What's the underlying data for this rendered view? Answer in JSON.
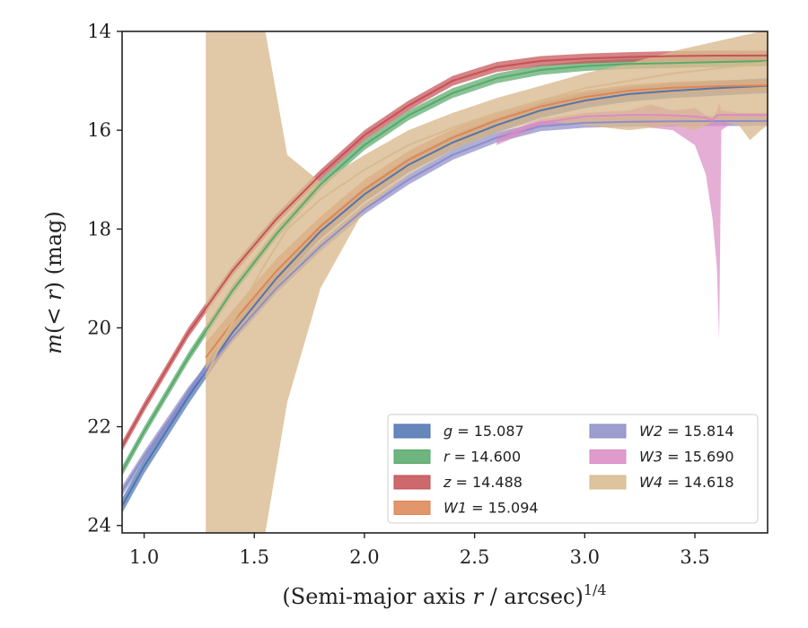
{
  "chart_data": {
    "type": "line",
    "xlabel_main": "(Semi-major axis ",
    "xlabel_var": "r",
    "xlabel_end": " / arcsec)",
    "xlabel_sup": "1/4",
    "ylabel_var1": "m",
    "ylabel_mid": "(< ",
    "ylabel_var2": "r",
    "ylabel_end": ") (mag)",
    "xlim": [
      0.9,
      3.83
    ],
    "ylim": [
      24.15,
      14.0
    ],
    "y_inverted": true,
    "xticks": [
      1.0,
      1.5,
      2.0,
      2.5,
      3.0,
      3.5
    ],
    "xtick_labels": [
      "1.0",
      "1.5",
      "2.0",
      "2.5",
      "3.0",
      "3.5"
    ],
    "yticks": [
      14,
      16,
      18,
      20,
      22,
      24
    ],
    "ytick_labels": [
      "14",
      "16",
      "18",
      "20",
      "22",
      "24"
    ],
    "grid": false,
    "legend_position": "lower-right",
    "series": [
      {
        "name": "g",
        "legend_value": "= 15.087",
        "color": "#4c72b0",
        "x": [
          0.9,
          1.0,
          1.2,
          1.4,
          1.6,
          1.8,
          2.0,
          2.2,
          2.4,
          2.6,
          2.8,
          3.0,
          3.2,
          3.4,
          3.6,
          3.83
        ],
        "y": [
          23.6,
          22.8,
          21.4,
          20.1,
          19.0,
          18.05,
          17.3,
          16.7,
          16.25,
          15.9,
          15.6,
          15.4,
          15.27,
          15.2,
          15.15,
          15.1
        ],
        "band_upper": [
          23.45,
          22.65,
          21.25,
          19.95,
          18.85,
          17.9,
          17.15,
          16.55,
          16.1,
          15.75,
          15.45,
          15.25,
          15.12,
          15.05,
          15.0,
          14.95
        ],
        "band_lower": [
          23.75,
          22.95,
          21.55,
          20.25,
          19.15,
          18.2,
          17.45,
          16.85,
          16.4,
          16.05,
          15.75,
          15.55,
          15.42,
          15.35,
          15.3,
          15.25
        ]
      },
      {
        "name": "r",
        "legend_value": "= 14.600",
        "color": "#55a868",
        "x": [
          0.9,
          1.0,
          1.2,
          1.4,
          1.6,
          1.8,
          2.0,
          2.2,
          2.4,
          2.6,
          2.8,
          3.0,
          3.2,
          3.4,
          3.6,
          3.83
        ],
        "y": [
          22.9,
          22.1,
          20.6,
          19.25,
          18.1,
          17.1,
          16.3,
          15.7,
          15.25,
          14.95,
          14.78,
          14.7,
          14.66,
          14.64,
          14.62,
          14.6
        ],
        "band_upper": [
          22.8,
          22.0,
          20.5,
          19.15,
          18.0,
          17.0,
          16.2,
          15.6,
          15.15,
          14.85,
          14.68,
          14.6,
          14.56,
          14.54,
          14.52,
          14.5
        ],
        "band_lower": [
          23.0,
          22.2,
          20.7,
          19.35,
          18.2,
          17.2,
          16.4,
          15.8,
          15.35,
          15.05,
          14.88,
          14.8,
          14.76,
          14.74,
          14.72,
          14.7
        ]
      },
      {
        "name": "z",
        "legend_value": "= 14.488",
        "color": "#c44e52",
        "x": [
          0.9,
          1.0,
          1.2,
          1.4,
          1.6,
          1.8,
          2.0,
          2.2,
          2.4,
          2.6,
          2.8,
          3.0,
          3.2,
          3.4,
          3.6,
          3.83
        ],
        "y": [
          22.4,
          21.6,
          20.1,
          18.85,
          17.8,
          16.9,
          16.1,
          15.5,
          15.0,
          14.72,
          14.6,
          14.55,
          14.52,
          14.5,
          14.49,
          14.488
        ],
        "band_upper": [
          22.3,
          21.5,
          20.0,
          18.75,
          17.7,
          16.8,
          16.0,
          15.4,
          14.9,
          14.62,
          14.5,
          14.45,
          14.42,
          14.4,
          14.39,
          14.39
        ],
        "band_lower": [
          22.5,
          21.7,
          20.2,
          18.95,
          17.9,
          17.0,
          16.2,
          15.6,
          15.1,
          14.82,
          14.7,
          14.65,
          14.62,
          14.6,
          14.59,
          14.59
        ]
      },
      {
        "name": "W1",
        "legend_value": "= 15.094",
        "color": "#dd8452",
        "x": [
          1.28,
          1.4,
          1.6,
          1.8,
          2.0,
          2.2,
          2.4,
          2.6,
          2.8,
          3.0,
          3.2,
          3.4,
          3.6,
          3.83
        ],
        "y": [
          20.6,
          19.9,
          18.85,
          17.95,
          17.2,
          16.6,
          16.15,
          15.8,
          15.52,
          15.33,
          15.2,
          15.14,
          15.11,
          15.094
        ],
        "band_upper": [
          20.3,
          19.65,
          18.6,
          17.75,
          17.0,
          16.42,
          15.98,
          15.64,
          15.38,
          15.2,
          15.08,
          15.02,
          14.99,
          14.98
        ],
        "band_lower": [
          20.9,
          20.15,
          19.1,
          18.15,
          17.4,
          16.78,
          16.32,
          15.96,
          15.66,
          15.46,
          15.32,
          15.26,
          15.23,
          15.21
        ]
      },
      {
        "name": "W2",
        "legend_value": "= 15.814",
        "color": "#8c8cc8",
        "x": [
          0.9,
          1.0,
          1.2,
          1.4,
          1.6,
          1.8,
          2.0,
          2.2,
          2.4,
          2.6,
          2.8,
          3.0,
          3.2,
          3.4,
          3.6,
          3.83
        ],
        "y": [
          23.3,
          22.6,
          21.3,
          20.2,
          19.2,
          18.35,
          17.6,
          17.0,
          16.5,
          16.15,
          15.92,
          15.85,
          15.83,
          15.82,
          15.815,
          15.814
        ],
        "band_upper": [
          23.2,
          22.5,
          21.2,
          20.1,
          19.1,
          18.25,
          17.5,
          16.9,
          16.4,
          16.05,
          15.82,
          15.75,
          15.73,
          15.72,
          15.715,
          15.714
        ],
        "band_lower": [
          23.4,
          22.7,
          21.4,
          20.3,
          19.3,
          18.45,
          17.7,
          17.1,
          16.6,
          16.25,
          16.02,
          15.95,
          15.93,
          15.92,
          15.915,
          15.914
        ]
      },
      {
        "name": "W3",
        "legend_value": "= 15.690",
        "color": "#da8bc3",
        "x": [
          2.6,
          2.8,
          3.0,
          3.2,
          3.3,
          3.4,
          3.5,
          3.55,
          3.58,
          3.6,
          3.61,
          3.62,
          3.7,
          3.83
        ],
        "y": [
          16.2,
          15.85,
          15.72,
          15.69,
          15.69,
          15.7,
          15.72,
          15.75,
          15.8,
          15.7,
          15.69,
          15.69,
          15.69,
          15.69
        ],
        "band_upper": [
          16.1,
          15.78,
          15.65,
          15.6,
          15.48,
          15.6,
          15.55,
          15.7,
          15.75,
          15.6,
          15.45,
          15.6,
          15.65,
          15.65
        ],
        "band_lower": [
          16.3,
          15.92,
          15.8,
          15.8,
          15.95,
          16.0,
          16.3,
          16.9,
          17.8,
          18.8,
          20.25,
          16.0,
          15.75,
          15.75
        ]
      },
      {
        "name": "W4",
        "legend_value": "= 14.618",
        "color": "#d8b98e",
        "x": [
          1.28,
          1.35,
          1.45,
          1.55,
          1.65,
          1.8,
          2.0,
          2.2,
          2.4,
          2.6,
          2.8,
          3.0,
          3.2,
          3.4,
          3.5,
          3.6,
          3.7,
          3.75,
          3.8,
          3.83
        ],
        "y": [
          21.0,
          20.3,
          19.5,
          18.7,
          18.0,
          17.4,
          16.8,
          16.3,
          15.95,
          15.65,
          15.4,
          15.15,
          15.0,
          14.85,
          14.8,
          14.75,
          14.7,
          14.68,
          14.64,
          14.618
        ],
        "band_upper": [
          14.0,
          14.0,
          14.0,
          14.0,
          16.5,
          17.05,
          16.5,
          16.0,
          15.65,
          15.35,
          15.1,
          14.85,
          14.65,
          14.4,
          14.3,
          14.2,
          14.1,
          14.05,
          14.0,
          14.0
        ],
        "band_lower": [
          24.15,
          24.15,
          24.15,
          24.15,
          21.5,
          19.2,
          17.6,
          16.9,
          16.4,
          16.05,
          15.8,
          15.9,
          16.0,
          15.9,
          16.0,
          15.8,
          15.9,
          16.2,
          16.0,
          15.9
        ]
      }
    ]
  }
}
